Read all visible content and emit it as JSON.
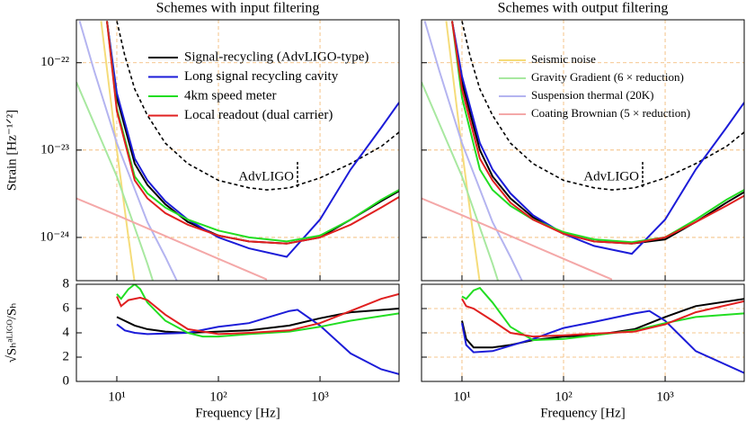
{
  "chart_data": [
    {
      "type": "line",
      "title": "Schemes with input filtering",
      "y_label": "Strain [Hz⁻¹ᐟ²]",
      "xscale": "log",
      "yscale": "log",
      "xlim": [
        4,
        6000
      ],
      "ylim": [
        3.2e-25,
        3.1e-22
      ],
      "xticks": [
        10,
        100,
        1000
      ],
      "xtick_labels": false,
      "yticks": [
        {
          "value": 1e-22,
          "label": "10⁻²²"
        },
        {
          "value": 1e-23,
          "label": "10⁻²³"
        },
        {
          "value": 1e-24,
          "label": "10⁻²⁴"
        }
      ],
      "grid": true,
      "legend": "upper right",
      "annotation": "AdvLIGO",
      "series": [
        {
          "color": "#f5dc7a",
          "x": [
            7,
            10,
            13,
            15
          ],
          "values": [
            3e-22,
            1e-23,
            1e-24,
            3e-25
          ]
        },
        {
          "color": "#a8e8a0",
          "x": [
            4,
            6,
            10,
            15,
            20,
            23
          ],
          "values": [
            6e-23,
            2e-23,
            5e-24,
            1.3e-24,
            5e-25,
            3e-25
          ]
        },
        {
          "color": "#b4b4f0",
          "x": [
            4.3,
            6,
            10,
            20,
            30,
            40
          ],
          "values": [
            3e-22,
            8e-23,
            1.2e-23,
            1.5e-24,
            6e-25,
            3e-25
          ]
        },
        {
          "color": "#f4a8a8",
          "x": [
            4,
            10,
            100,
            300
          ],
          "values": [
            2.8e-24,
            1.8e-24,
            5.7e-25,
            3.3e-25
          ]
        },
        {
          "color": "#000000",
          "dashed": true,
          "x": [
            10,
            12,
            15,
            20,
            30,
            50,
            100,
            200,
            300,
            500,
            1000,
            2000,
            4000,
            6000
          ],
          "values": [
            3e-22,
            1.2e-22,
            5e-23,
            2.5e-23,
            1.2e-23,
            7e-24,
            4.5e-24,
            3.7e-24,
            3.5e-24,
            3.7e-24,
            4.8e-24,
            7e-24,
            1.1e-23,
            1.6e-23
          ]
        },
        {
          "name": "Signal-recycling (AdvLIGO-type)",
          "color": "#000000",
          "x": [
            8,
            10,
            15,
            20,
            30,
            50,
            100,
            200,
            470,
            1000,
            2000,
            4000,
            6000
          ],
          "values": [
            3e-22,
            4e-23,
            7e-24,
            4e-24,
            2.4e-24,
            1.5e-24,
            1.05e-24,
            9e-25,
            8.5e-25,
            1e-24,
            1.6e-24,
            2.6e-24,
            3.4e-24
          ]
        },
        {
          "name": "Long signal recycling cavity",
          "color": "#1c1cd8",
          "x": [
            8,
            10,
            15,
            20,
            30,
            50,
            100,
            200,
            470,
            1000,
            2000,
            4000,
            6000
          ],
          "values": [
            3e-22,
            4.5e-23,
            8e-24,
            4.5e-24,
            2.6e-24,
            1.6e-24,
            1e-24,
            7.5e-25,
            6e-25,
            1.6e-24,
            6e-24,
            1.8e-23,
            3.5e-23
          ]
        },
        {
          "name": "4km speed meter",
          "color": "#22dd22",
          "x": [
            8,
            10,
            15,
            20,
            30,
            50,
            100,
            200,
            470,
            1000,
            2000,
            4000,
            6000
          ],
          "values": [
            3e-22,
            3e-23,
            5e-24,
            3.2e-24,
            2.2e-24,
            1.6e-24,
            1.2e-24,
            1e-24,
            9e-25,
            1.05e-24,
            1.6e-24,
            2.7e-24,
            3.5e-24
          ]
        },
        {
          "name": "Local readout (dual carrier)",
          "color": "#e02020",
          "x": [
            8,
            10,
            15,
            20,
            30,
            50,
            100,
            200,
            470,
            1000,
            2000,
            4000,
            6000
          ],
          "values": [
            3e-22,
            2.8e-23,
            4.5e-24,
            2.8e-24,
            1.9e-24,
            1.4e-24,
            1.05e-24,
            9e-25,
            8.5e-25,
            1e-24,
            1.4e-24,
            2.2e-24,
            2.9e-24
          ]
        }
      ]
    },
    {
      "type": "line",
      "x_label": "Frequency [Hz]",
      "y_label": "√Sₕᵃᴸᴵᴳᴼ/Sₕ",
      "xscale": "log",
      "yscale": "linear",
      "xlim": [
        4,
        6000
      ],
      "ylim": [
        0,
        8
      ],
      "xticks": [
        {
          "value": 10,
          "label": "10¹"
        },
        {
          "value": 100,
          "label": "10²"
        },
        {
          "value": 1000,
          "label": "10³"
        }
      ],
      "yticks": [
        0,
        2,
        4,
        6,
        8
      ],
      "grid": false,
      "series": [
        {
          "color": "#000000",
          "x": [
            10,
            15,
            20,
            30,
            50,
            100,
            200,
            500,
            1000,
            2000,
            6000
          ],
          "values": [
            5.3,
            4.6,
            4.3,
            4.1,
            4.0,
            4.1,
            4.2,
            4.6,
            5.2,
            5.7,
            6.0
          ]
        },
        {
          "color": "#1c1cd8",
          "x": [
            10,
            12,
            15,
            20,
            50,
            100,
            200,
            500,
            600,
            1000,
            2000,
            4000,
            6000
          ],
          "values": [
            4.7,
            4.2,
            4.0,
            3.9,
            4.0,
            4.5,
            4.8,
            5.8,
            5.9,
            4.6,
            2.3,
            1.0,
            0.6
          ]
        },
        {
          "color": "#22dd22",
          "x": [
            10,
            11,
            13,
            15,
            17,
            20,
            30,
            50,
            70,
            100,
            200,
            500,
            1000,
            2000,
            6000
          ],
          "values": [
            7.2,
            6.8,
            7.6,
            8.0,
            7.6,
            6.5,
            5.0,
            4.0,
            3.7,
            3.7,
            3.9,
            4.1,
            4.5,
            5.0,
            5.6
          ]
        },
        {
          "color": "#e02020",
          "x": [
            10,
            11,
            13,
            17,
            20,
            30,
            50,
            100,
            200,
            500,
            1000,
            2000,
            4000,
            6000
          ],
          "values": [
            7.0,
            6.2,
            6.7,
            6.9,
            6.7,
            5.5,
            4.3,
            3.9,
            4.0,
            4.2,
            4.8,
            5.8,
            6.8,
            7.2
          ]
        }
      ]
    },
    {
      "type": "line",
      "title": "Schemes with output filtering",
      "xscale": "log",
      "yscale": "log",
      "xlim": [
        4,
        6000
      ],
      "ylim": [
        3.2e-25,
        3.1e-22
      ],
      "xticks": [
        10,
        100,
        1000
      ],
      "xtick_labels": false,
      "yticks": [
        1e-22,
        1e-23,
        1e-24
      ],
      "ytick_labels": false,
      "grid": true,
      "legend": "upper right",
      "annotation": "AdvLIGO",
      "series": [
        {
          "name": "Seismic noise",
          "color": "#f5dc7a",
          "x": [
            7,
            10,
            13,
            15
          ],
          "values": [
            3e-22,
            1e-23,
            1e-24,
            3e-25
          ]
        },
        {
          "name": "Gravity Gradient (6 × reduction)",
          "color": "#a8e8a0",
          "x": [
            4,
            6,
            10,
            15,
            20,
            23
          ],
          "values": [
            6e-23,
            2e-23,
            5e-24,
            1.3e-24,
            5e-25,
            3e-25
          ]
        },
        {
          "name": "Suspension thermal (20K)",
          "color": "#b4b4f0",
          "x": [
            4.3,
            6,
            10,
            20,
            30,
            40
          ],
          "values": [
            3e-22,
            8e-23,
            1.2e-23,
            1.5e-24,
            6e-25,
            3e-25
          ]
        },
        {
          "name": "Coating Brownian (5 × reduction)",
          "color": "#f4a8a8",
          "x": [
            4,
            10,
            100,
            300
          ],
          "values": [
            2.8e-24,
            1.8e-24,
            5.7e-25,
            3.3e-25
          ]
        },
        {
          "color": "#000000",
          "dashed": true,
          "x": [
            10,
            12,
            15,
            20,
            30,
            50,
            100,
            200,
            300,
            500,
            1000,
            2000,
            4000,
            6000
          ],
          "values": [
            3e-22,
            1.2e-22,
            5e-23,
            2.5e-23,
            1.2e-23,
            7e-24,
            4.5e-24,
            3.7e-24,
            3.5e-24,
            3.7e-24,
            4.8e-24,
            7e-24,
            1.1e-23,
            1.6e-23
          ]
        },
        {
          "color": "#000000",
          "x": [
            8,
            10,
            15,
            20,
            30,
            50,
            100,
            200,
            470,
            1000,
            2000,
            4000,
            6000
          ],
          "values": [
            3e-22,
            6e-23,
            1e-23,
            5e-24,
            2.8e-24,
            1.7e-24,
            1.1e-24,
            9e-25,
            8.5e-25,
            9.5e-25,
            1.5e-24,
            2.5e-24,
            3.3e-24
          ]
        },
        {
          "color": "#1c1cd8",
          "x": [
            8,
            10,
            15,
            20,
            30,
            50,
            100,
            200,
            470,
            1000,
            2000,
            4000,
            6000
          ],
          "values": [
            3e-22,
            7e-23,
            1.2e-23,
            6e-24,
            3.2e-24,
            1.8e-24,
            1.1e-24,
            8e-25,
            6.5e-25,
            1.6e-24,
            6e-24,
            1.8e-23,
            3.5e-23
          ]
        },
        {
          "color": "#22dd22",
          "x": [
            8,
            10,
            15,
            20,
            30,
            50,
            100,
            200,
            470,
            1000,
            2000,
            4000,
            6000
          ],
          "values": [
            3e-22,
            4e-23,
            6e-24,
            3.5e-24,
            2.3e-24,
            1.6e-24,
            1.15e-24,
            9.5e-25,
            8.8e-25,
            1e-24,
            1.6e-24,
            2.7e-24,
            3.5e-24
          ]
        },
        {
          "color": "#e02020",
          "x": [
            8,
            10,
            15,
            20,
            30,
            50,
            100,
            200,
            470,
            1000,
            2000,
            4000,
            6000
          ],
          "values": [
            3e-22,
            5e-23,
            8e-24,
            4.5e-24,
            2.5e-24,
            1.6e-24,
            1.1e-24,
            9e-25,
            8.5e-25,
            1e-24,
            1.5e-24,
            2.3e-24,
            3e-24
          ]
        }
      ]
    },
    {
      "type": "line",
      "x_label": "Frequency [Hz]",
      "xscale": "log",
      "yscale": "linear",
      "xlim": [
        4,
        6000
      ],
      "ylim": [
        0,
        8
      ],
      "xticks": [
        {
          "value": 10,
          "label": "10¹"
        },
        {
          "value": 100,
          "label": "10²"
        },
        {
          "value": 1000,
          "label": "10³"
        }
      ],
      "yticks": [
        0,
        2,
        4,
        6,
        8
      ],
      "ytick_labels": false,
      "grid": true,
      "series": [
        {
          "color": "#000000",
          "x": [
            10,
            11,
            13,
            20,
            30,
            50,
            100,
            200,
            500,
            1000,
            2000,
            6000
          ],
          "values": [
            5.0,
            3.5,
            2.8,
            2.8,
            3.0,
            3.4,
            3.7,
            3.8,
            4.3,
            5.3,
            6.2,
            6.8
          ]
        },
        {
          "color": "#1c1cd8",
          "x": [
            10,
            11,
            13,
            20,
            50,
            100,
            200,
            500,
            700,
            1000,
            2000,
            6000
          ],
          "values": [
            4.8,
            3.0,
            2.4,
            2.5,
            3.5,
            4.4,
            4.9,
            5.6,
            5.8,
            5.0,
            2.5,
            0.7
          ]
        },
        {
          "color": "#22dd22",
          "x": [
            10,
            11,
            13,
            15,
            20,
            30,
            50,
            100,
            200,
            500,
            1000,
            2000,
            6000
          ],
          "values": [
            7.0,
            6.8,
            7.5,
            7.7,
            6.5,
            4.5,
            3.4,
            3.5,
            3.8,
            4.2,
            4.8,
            5.3,
            5.6
          ]
        },
        {
          "color": "#e02020",
          "x": [
            10,
            11,
            13,
            20,
            30,
            50,
            100,
            500,
            1000,
            2000,
            6000
          ],
          "values": [
            6.8,
            6.2,
            6.0,
            5.0,
            4.0,
            3.7,
            3.8,
            4.1,
            4.7,
            5.7,
            6.6
          ]
        }
      ]
    }
  ]
}
